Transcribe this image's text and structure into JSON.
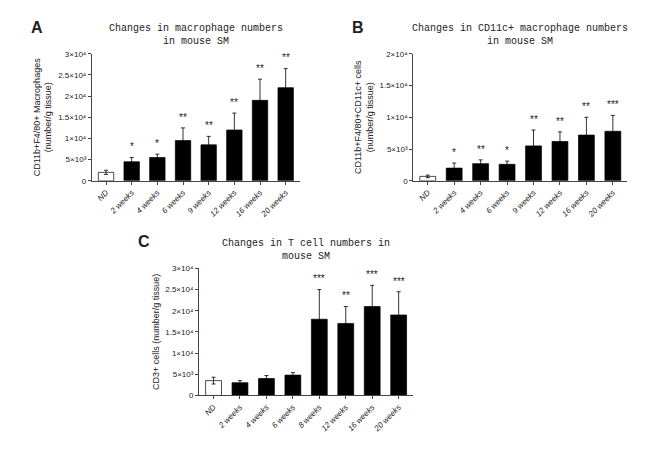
{
  "chart_data": [
    {
      "type": "bar",
      "title": "Changes in macrophage numbers\nin mouse SM",
      "ylabel": "CD11b+F4/80+ Macrophages\n(number/g tissue)",
      "panel_label": "A",
      "categories": [
        "ND",
        "2 weeks",
        "4 weeks",
        "6 weeks",
        "9 weeks",
        "12 weeks",
        "16 weeks",
        "20 weeks"
      ],
      "values": [
        2000,
        4500,
        5500,
        9500,
        8500,
        12000,
        19000,
        22000
      ],
      "errors": [
        500,
        1000,
        800,
        3000,
        2000,
        4000,
        5000,
        4500
      ],
      "significance": [
        null,
        "*",
        "*",
        "**",
        "**",
        "**",
        "**",
        "**"
      ],
      "colors": [
        "white",
        "black",
        "black",
        "black",
        "black",
        "black",
        "black",
        "black"
      ],
      "ylim": [
        0,
        30000
      ],
      "yticks": [
        0,
        {
          "value": 5000,
          "label": "5×10³"
        },
        {
          "value": 10000,
          "label": "1×10⁴"
        },
        {
          "value": 15000,
          "label": "1.5×10⁴"
        },
        {
          "value": 20000,
          "label": "2×10⁴"
        },
        {
          "value": 25000,
          "label": "2.5×10⁴"
        },
        {
          "value": 30000,
          "label": "3×10⁴"
        }
      ],
      "grid": false
    },
    {
      "type": "bar",
      "title": "Changes in CD11c+ macrophage numbers\nin mouse SM",
      "ylabel": "CD11b+F4/80+CD11c+ cells\n(number/g tissue)",
      "panel_label": "B",
      "categories": [
        "ND",
        "2 weeks",
        "4 weeks",
        "6 weeks",
        "9 weeks",
        "12 weeks",
        "16 weeks",
        "20 weeks"
      ],
      "values": [
        700,
        2000,
        2700,
        2600,
        5500,
        6200,
        7200,
        7800
      ],
      "errors": [
        200,
        800,
        600,
        500,
        2500,
        1500,
        2800,
        2500
      ],
      "significance": [
        null,
        "*",
        "**",
        "*",
        "**",
        "**",
        "**",
        "***"
      ],
      "colors": [
        "white",
        "black",
        "black",
        "black",
        "black",
        "black",
        "black",
        "black"
      ],
      "ylim": [
        0,
        20000
      ],
      "yticks": [
        0,
        {
          "value": 5000,
          "label": "5×10³"
        },
        {
          "value": 10000,
          "label": "1×10⁴"
        },
        {
          "value": 15000,
          "label": "1.5×10⁴"
        },
        {
          "value": 20000,
          "label": "2×10⁴"
        }
      ],
      "grid": false
    },
    {
      "type": "bar",
      "title": "Changes in T cell numbers in\nmouse SM",
      "ylabel": "CD3+ cells (number/g tissue)",
      "panel_label": "C",
      "categories": [
        "ND",
        "2 weeks",
        "4 weeks",
        "6 weeks",
        "8 weeks",
        "12 weeks",
        "16 weeks",
        "20 weeks"
      ],
      "values": [
        3500,
        3000,
        4000,
        4800,
        18000,
        17000,
        21000,
        19000
      ],
      "errors": [
        800,
        500,
        700,
        600,
        7000,
        4000,
        5000,
        5500
      ],
      "significance": [
        null,
        null,
        null,
        null,
        "***",
        "**",
        "***",
        "***"
      ],
      "colors": [
        "white",
        "black",
        "black",
        "black",
        "black",
        "black",
        "black",
        "black"
      ],
      "ylim": [
        0,
        30000
      ],
      "yticks": [
        0,
        {
          "value": 5000,
          "label": "5×10³"
        },
        {
          "value": 10000,
          "label": "1×10⁴"
        },
        {
          "value": 15000,
          "label": "1.5×10⁴"
        },
        {
          "value": 20000,
          "label": "2×10⁴"
        },
        {
          "value": 25000,
          "label": "2.5×10⁴"
        },
        {
          "value": 30000,
          "label": "3×10⁴"
        }
      ],
      "grid": false
    }
  ]
}
